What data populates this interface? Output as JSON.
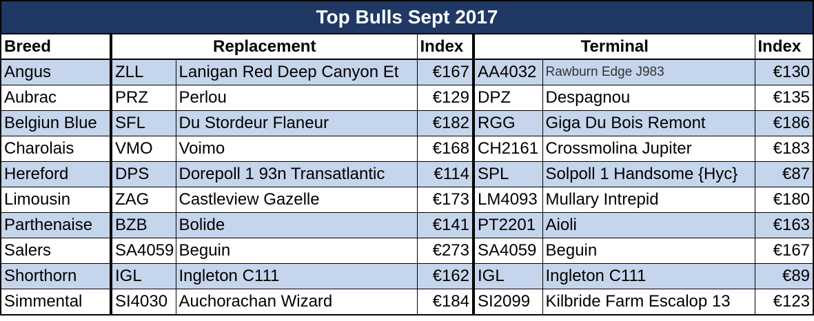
{
  "title": "Top Bulls Sept 2017",
  "headers": {
    "breed": "Breed",
    "replacement": "Replacement",
    "replacement_index": "Index",
    "terminal": "Terminal",
    "terminal_index": "Index"
  },
  "rows": [
    {
      "breed": "Angus",
      "rep_code": "ZLL",
      "rep_name": "Lanigan Red Deep Canyon Et",
      "rep_index": "€167",
      "term_code": "AA4032",
      "term_name": "Rawburn Edge J983",
      "term_index": "€130"
    },
    {
      "breed": "Aubrac",
      "rep_code": "PRZ",
      "rep_name": "Perlou",
      "rep_index": "€129",
      "term_code": "DPZ",
      "term_name": "Despagnou",
      "term_index": "€135"
    },
    {
      "breed": "Belgiun Blue",
      "rep_code": "SFL",
      "rep_name": "Du Stordeur Flaneur",
      "rep_index": "€182",
      "term_code": "RGG",
      "term_name": "Giga Du Bois Remont",
      "term_index": "€186"
    },
    {
      "breed": "Charolais",
      "rep_code": "VMO",
      "rep_name": "Voimo",
      "rep_index": "€168",
      "term_code": "CH2161",
      "term_name": "Crossmolina Jupiter",
      "term_index": "€183"
    },
    {
      "breed": "Hereford",
      "rep_code": "DPS",
      "rep_name": "Dorepoll 1 93n Transatlantic",
      "rep_index": "€114",
      "term_code": "SPL",
      "term_name": "Solpoll 1 Handsome {Hyc}",
      "term_index": "€87"
    },
    {
      "breed": "Limousin",
      "rep_code": "ZAG",
      "rep_name": "Castleview Gazelle",
      "rep_index": "€173",
      "term_code": "LM4093",
      "term_name": "Mullary Intrepid",
      "term_index": "€180"
    },
    {
      "breed": "Parthenaise",
      "rep_code": "BZB",
      "rep_name": "Bolide",
      "rep_index": "€141",
      "term_code": "PT2201",
      "term_name": "Aioli",
      "term_index": "€163"
    },
    {
      "breed": "Salers",
      "rep_code": "SA4059",
      "rep_name": "Beguin",
      "rep_index": "€273",
      "term_code": "SA4059",
      "term_name": "Beguin",
      "term_index": "€167"
    },
    {
      "breed": "Shorthorn",
      "rep_code": "IGL",
      "rep_name": "Ingleton C111",
      "rep_index": "€162",
      "term_code": "IGL",
      "term_name": "Ingleton C111",
      "term_index": "€89"
    },
    {
      "breed": "Simmental",
      "rep_code": "SI4030",
      "rep_name": "Auchorachan Wizard",
      "rep_index": "€184",
      "term_code": "SI2099",
      "term_name": "Kilbride Farm Escalop 13",
      "term_index": "€123"
    }
  ]
}
